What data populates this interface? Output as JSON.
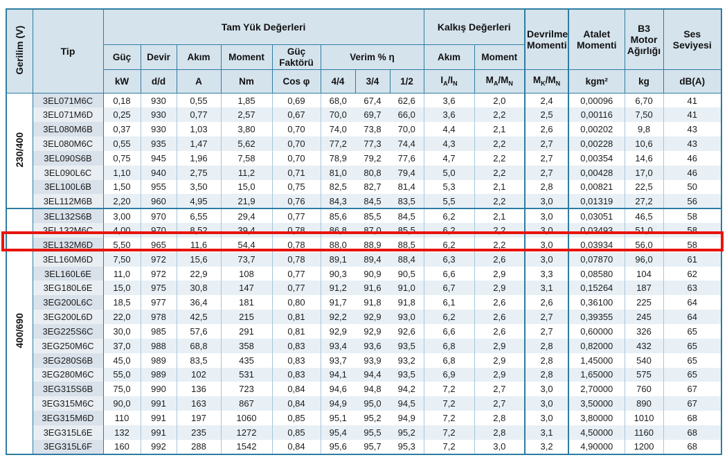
{
  "colors": {
    "accent_border": "#2d7ca1",
    "header_bg": "#d5e3ed",
    "row_stripe": "#e8f0f6",
    "tip_stripe": "#d9e1ea",
    "highlight": "#e8140c"
  },
  "table": {
    "header": {
      "gerilim": "Gerilim (V)",
      "tip": "Tip",
      "tam_yuk": "Tam Yük Değerleri",
      "kalkis": "Kalkış Değerleri",
      "devrilme": "Devrilme Momenti",
      "atalet": "Atalet Momenti",
      "b3": "B3 Motor Ağırlığı",
      "ses": "Ses Seviyesi",
      "sub": {
        "guc": "Güç",
        "devir": "Devir",
        "akim": "Akım",
        "moment": "Moment",
        "guc_faktoru": "Güç Faktörü",
        "verim": "Verim % η",
        "kalkis_akim": "Akım",
        "kalkis_moment": "Moment"
      },
      "units": {
        "kw": "kW",
        "dd": "d/d",
        "a": "A",
        "nm": "Nm",
        "cos": "Cos φ",
        "q44": "4/4",
        "q34": "3/4",
        "q12": "1/2",
        "iain": "I_A/I_N",
        "mamn": "M_A/M_N",
        "mkmn": "M_K/M_N",
        "kgm2": "kgm²",
        "kg": "kg",
        "dba": "dB(A)"
      }
    },
    "highlighted_row_tip": "3EL132M6D",
    "sections": [
      {
        "voltage": "230/400",
        "rows": [
          {
            "tip": "3EL071M6C",
            "values": [
              "0,18",
              "930",
              "0,55",
              "1,85",
              "0,69",
              "68,0",
              "67,4",
              "62,6",
              "3,6",
              "2,0",
              "2,4",
              "0,00096",
              "6,70",
              "41"
            ]
          },
          {
            "tip": "3EL071M6D",
            "values": [
              "0,25",
              "930",
              "0,77",
              "2,57",
              "0,67",
              "70,0",
              "69,7",
              "66,0",
              "3,6",
              "2,2",
              "2,5",
              "0,00116",
              "7,50",
              "41"
            ]
          },
          {
            "tip": "3EL080M6B",
            "values": [
              "0,37",
              "930",
              "1,03",
              "3,80",
              "0,70",
              "74,0",
              "73,8",
              "70,0",
              "4,4",
              "2,1",
              "2,6",
              "0,00202",
              "9,8",
              "43"
            ]
          },
          {
            "tip": "3EL080M6C",
            "values": [
              "0,55",
              "935",
              "1,47",
              "5,62",
              "0,70",
              "77,2",
              "77,3",
              "74,4",
              "4,3",
              "2,2",
              "2,7",
              "0,00228",
              "10,6",
              "43"
            ]
          },
          {
            "tip": "3EL090S6B",
            "values": [
              "0,75",
              "945",
              "1,96",
              "7,58",
              "0,70",
              "78,9",
              "79,2",
              "77,6",
              "4,7",
              "2,2",
              "2,7",
              "0,00354",
              "14,6",
              "46"
            ]
          },
          {
            "tip": "3EL090L6C",
            "values": [
              "1,10",
              "940",
              "2,75",
              "11,2",
              "0,71",
              "81,0",
              "80,8",
              "79,4",
              "5,0",
              "2,2",
              "2,7",
              "0,00428",
              "17,0",
              "46"
            ]
          },
          {
            "tip": "3EL100L6B",
            "values": [
              "1,50",
              "955",
              "3,50",
              "15,0",
              "0,75",
              "82,5",
              "82,7",
              "81,4",
              "5,3",
              "2,1",
              "2,8",
              "0,00821",
              "22,5",
              "50"
            ]
          },
          {
            "tip": "3EL112M6B",
            "values": [
              "2,20",
              "960",
              "4,95",
              "21,9",
              "0,76",
              "84,3",
              "84,5",
              "83,5",
              "5,5",
              "2,2",
              "3,0",
              "0,01319",
              "27,2",
              "56"
            ]
          }
        ]
      },
      {
        "voltage": "400/690",
        "rows": [
          {
            "tip": "3EL132S6B",
            "values": [
              "3,00",
              "970",
              "6,55",
              "29,4",
              "0,77",
              "85,6",
              "85,5",
              "84,5",
              "6,2",
              "2,1",
              "3,0",
              "0,03051",
              "46,5",
              "58"
            ]
          },
          {
            "tip": "3EL132M6C",
            "values": [
              "4,00",
              "970",
              "8,52",
              "39,4",
              "0,78",
              "86,8",
              "87,0",
              "85,5",
              "6,2",
              "2,2",
              "3,0",
              "0,03493",
              "51,0",
              "58"
            ]
          },
          {
            "tip": "3EL132M6D",
            "values": [
              "5,50",
              "965",
              "11,6",
              "54,4",
              "0,78",
              "88,0",
              "88,9",
              "88,5",
              "6,2",
              "2,2",
              "3,0",
              "0,03934",
              "56,0",
              "58"
            ]
          },
          {
            "tip": "3EL160M6D",
            "values": [
              "7,50",
              "972",
              "15,6",
              "73,7",
              "0,78",
              "89,1",
              "89,4",
              "88,4",
              "6,3",
              "2,6",
              "3,0",
              "0,07870",
              "96,0",
              "61"
            ]
          },
          {
            "tip": "3EL160L6E",
            "values": [
              "11,0",
              "972",
              "22,9",
              "108",
              "0,77",
              "90,3",
              "90,9",
              "90,5",
              "6,6",
              "2,9",
              "3,3",
              "0,08580",
              "104",
              "62"
            ]
          },
          {
            "tip": "3EG180L6E",
            "values": [
              "15,0",
              "975",
              "30,8",
              "147",
              "0,77",
              "91,2",
              "91,6",
              "91,0",
              "6,7",
              "2,9",
              "3,1",
              "0,15264",
              "187",
              "63"
            ]
          },
          {
            "tip": "3EG200L6C",
            "values": [
              "18,5",
              "977",
              "36,4",
              "181",
              "0,80",
              "91,7",
              "91,8",
              "91,8",
              "6,1",
              "2,6",
              "2,6",
              "0,36100",
              "225",
              "64"
            ]
          },
          {
            "tip": "3EG200L6D",
            "values": [
              "22,0",
              "978",
              "42,5",
              "215",
              "0,81",
              "92,2",
              "92,9",
              "93,0",
              "6,2",
              "2,6",
              "2,7",
              "0,39355",
              "245",
              "64"
            ]
          },
          {
            "tip": "3EG225S6C",
            "values": [
              "30,0",
              "985",
              "57,6",
              "291",
              "0,81",
              "92,9",
              "92,9",
              "92,6",
              "6,6",
              "2,6",
              "2,7",
              "0,60000",
              "326",
              "65"
            ]
          },
          {
            "tip": "3EG250M6C",
            "values": [
              "37,0",
              "988",
              "68,8",
              "358",
              "0,83",
              "93,4",
              "93,6",
              "93,5",
              "6,8",
              "2,9",
              "2,8",
              "0,82000",
              "432",
              "65"
            ]
          },
          {
            "tip": "3EG280S6B",
            "values": [
              "45,0",
              "989",
              "83,5",
              "435",
              "0,83",
              "93,7",
              "93,9",
              "93,2",
              "6,8",
              "2,9",
              "2,8",
              "1,45000",
              "540",
              "65"
            ]
          },
          {
            "tip": "3EG280M6C",
            "values": [
              "55,0",
              "989",
              "102",
              "531",
              "0,83",
              "94,1",
              "94,4",
              "93,5",
              "6,9",
              "2,9",
              "2,8",
              "1,65000",
              "575",
              "65"
            ]
          },
          {
            "tip": "3EG315S6B",
            "values": [
              "75,0",
              "990",
              "136",
              "723",
              "0,84",
              "94,6",
              "94,8",
              "94,2",
              "7,2",
              "2,7",
              "3,0",
              "2,70000",
              "760",
              "67"
            ]
          },
          {
            "tip": "3EG315M6C",
            "values": [
              "90,0",
              "991",
              "163",
              "867",
              "0,84",
              "94,9",
              "95,0",
              "94,5",
              "7,2",
              "2,7",
              "3,0",
              "3,50000",
              "890",
              "67"
            ]
          },
          {
            "tip": "3EG315M6D",
            "values": [
              "110",
              "991",
              "197",
              "1060",
              "0,85",
              "95,1",
              "95,2",
              "94,9",
              "7,2",
              "2,8",
              "3,0",
              "3,80000",
              "1010",
              "68"
            ]
          },
          {
            "tip": "3EG315L6E",
            "values": [
              "132",
              "991",
              "235",
              "1272",
              "0,85",
              "95,4",
              "95,5",
              "95,2",
              "7,2",
              "2,8",
              "3,1",
              "4,50000",
              "1160",
              "68"
            ]
          },
          {
            "tip": "3EG315L6F",
            "values": [
              "160",
              "992",
              "288",
              "1542",
              "0,84",
              "95,6",
              "95,7",
              "95,3",
              "7,2",
              "3,0",
              "3,2",
              "4,90000",
              "1200",
              "68"
            ]
          }
        ]
      }
    ]
  }
}
